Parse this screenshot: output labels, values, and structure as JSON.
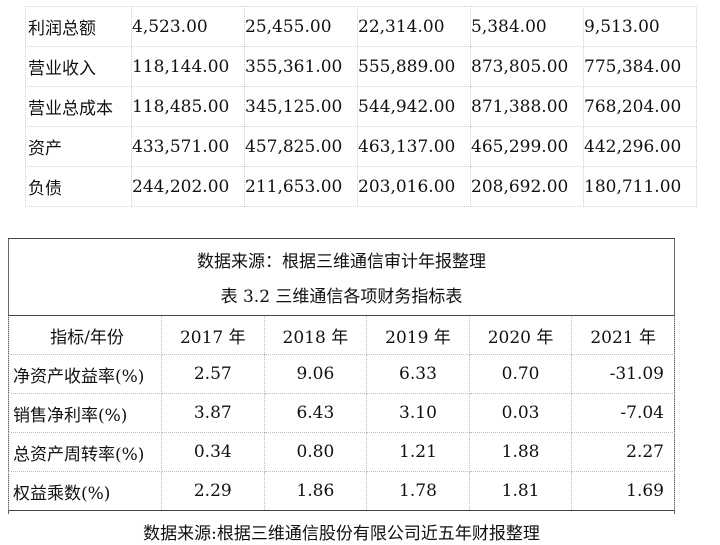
{
  "table1": {
    "rows": [
      {
        "label": "利润总额",
        "values": [
          "4,523.00",
          "25,455.00",
          "22,314.00",
          "5,384.00",
          "9,513.00"
        ]
      },
      {
        "label": "营业收入",
        "values": [
          "118,144.00",
          "355,361.00",
          "555,889.00",
          "873,805.00",
          "775,384.00"
        ]
      },
      {
        "label": "营业总成本",
        "values": [
          "118,485.00",
          "345,125.00",
          "544,942.00",
          "871,388.00",
          "768,204.00"
        ]
      },
      {
        "label": "资产",
        "values": [
          "433,571.00",
          "457,825.00",
          "463,137.00",
          "465,299.00",
          "442,296.00"
        ]
      },
      {
        "label": "负债",
        "values": [
          "244,202.00",
          "211,653.00",
          "203,016.00",
          "208,692.00",
          "180,711.00"
        ]
      }
    ]
  },
  "source1": "数据来源：根据三维通信审计年报整理",
  "caption2": "表 3.2 三维通信各项财务指标表",
  "table2": {
    "headers": [
      "指标/年份",
      "2017 年",
      "2018 年",
      "2019 年",
      "2020 年",
      "2021 年"
    ],
    "rows": [
      {
        "label": "净资产收益率(%)",
        "values": [
          "2.57",
          "9.06",
          "6.33",
          "0.70",
          "-31.09"
        ]
      },
      {
        "label": "销售净利率(%)",
        "values": [
          "3.87",
          "6.43",
          "3.10",
          "0.03",
          "-7.04"
        ]
      },
      {
        "label": "总资产周转率(%)",
        "values": [
          "0.34",
          "0.80",
          "1.21",
          "1.88",
          "2.27"
        ]
      },
      {
        "label": "权益乘数(%)",
        "values": [
          "2.29",
          "1.86",
          "1.78",
          "1.81",
          "1.69"
        ]
      }
    ]
  },
  "source2": "数据来源:根据三维通信股份有限公司近五年财报整理"
}
